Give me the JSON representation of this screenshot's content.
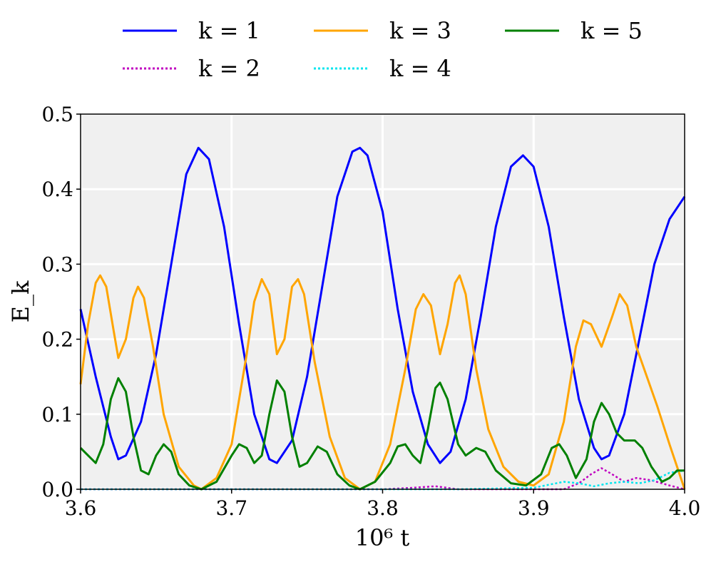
{
  "chart_data": {
    "type": "line",
    "xlabel": "10⁶ t",
    "ylabel": "E_k",
    "xlim": [
      3.6,
      4.0
    ],
    "ylim": [
      0.0,
      0.5
    ],
    "xticks": [
      "3.6",
      "3.7",
      "3.8",
      "3.9",
      "4.0"
    ],
    "yticks": [
      "0.0",
      "0.1",
      "0.2",
      "0.3",
      "0.4",
      "0.5"
    ],
    "grid": true,
    "legend_position": "top",
    "series": [
      {
        "name": "k = 1",
        "color": "#0000ff",
        "style": "solid",
        "points": [
          [
            3.6,
            0.24
          ],
          [
            3.61,
            0.15
          ],
          [
            3.62,
            0.07
          ],
          [
            3.625,
            0.04
          ],
          [
            3.63,
            0.045
          ],
          [
            3.64,
            0.09
          ],
          [
            3.65,
            0.18
          ],
          [
            3.66,
            0.3
          ],
          [
            3.67,
            0.42
          ],
          [
            3.678,
            0.455
          ],
          [
            3.685,
            0.44
          ],
          [
            3.695,
            0.35
          ],
          [
            3.705,
            0.22
          ],
          [
            3.715,
            0.1
          ],
          [
            3.725,
            0.04
          ],
          [
            3.73,
            0.035
          ],
          [
            3.74,
            0.065
          ],
          [
            3.75,
            0.15
          ],
          [
            3.76,
            0.27
          ],
          [
            3.77,
            0.39
          ],
          [
            3.78,
            0.45
          ],
          [
            3.785,
            0.455
          ],
          [
            3.79,
            0.445
          ],
          [
            3.8,
            0.37
          ],
          [
            3.81,
            0.24
          ],
          [
            3.82,
            0.13
          ],
          [
            3.83,
            0.06
          ],
          [
            3.838,
            0.035
          ],
          [
            3.845,
            0.05
          ],
          [
            3.855,
            0.12
          ],
          [
            3.865,
            0.23
          ],
          [
            3.875,
            0.35
          ],
          [
            3.885,
            0.43
          ],
          [
            3.893,
            0.445
          ],
          [
            3.9,
            0.43
          ],
          [
            3.91,
            0.35
          ],
          [
            3.92,
            0.23
          ],
          [
            3.93,
            0.12
          ],
          [
            3.94,
            0.055
          ],
          [
            3.945,
            0.04
          ],
          [
            3.95,
            0.045
          ],
          [
            3.96,
            0.1
          ],
          [
            3.97,
            0.2
          ],
          [
            3.98,
            0.3
          ],
          [
            3.99,
            0.36
          ],
          [
            4.0,
            0.39
          ]
        ]
      },
      {
        "name": "k = 2",
        "color": "#c000c0",
        "style": "dotted",
        "points": [
          [
            3.6,
            0.0
          ],
          [
            3.8,
            0.0
          ],
          [
            3.82,
            0.002
          ],
          [
            3.835,
            0.004
          ],
          [
            3.85,
            0.0
          ],
          [
            3.92,
            0.0
          ],
          [
            3.93,
            0.008
          ],
          [
            3.938,
            0.02
          ],
          [
            3.945,
            0.028
          ],
          [
            3.952,
            0.02
          ],
          [
            3.96,
            0.01
          ],
          [
            3.968,
            0.015
          ],
          [
            3.978,
            0.012
          ],
          [
            3.99,
            0.005
          ],
          [
            4.0,
            0.0
          ]
        ]
      },
      {
        "name": "k = 3",
        "color": "#ffa500",
        "style": "solid",
        "points": [
          [
            3.6,
            0.14
          ],
          [
            3.605,
            0.22
          ],
          [
            3.61,
            0.275
          ],
          [
            3.613,
            0.285
          ],
          [
            3.617,
            0.27
          ],
          [
            3.622,
            0.21
          ],
          [
            3.625,
            0.175
          ],
          [
            3.63,
            0.2
          ],
          [
            3.635,
            0.255
          ],
          [
            3.638,
            0.27
          ],
          [
            3.642,
            0.255
          ],
          [
            3.648,
            0.19
          ],
          [
            3.655,
            0.1
          ],
          [
            3.665,
            0.03
          ],
          [
            3.675,
            0.005
          ],
          [
            3.68,
            0.0
          ],
          [
            3.69,
            0.015
          ],
          [
            3.7,
            0.06
          ],
          [
            3.71,
            0.18
          ],
          [
            3.715,
            0.25
          ],
          [
            3.72,
            0.28
          ],
          [
            3.725,
            0.26
          ],
          [
            3.73,
            0.18
          ],
          [
            3.735,
            0.2
          ],
          [
            3.74,
            0.27
          ],
          [
            3.744,
            0.28
          ],
          [
            3.748,
            0.26
          ],
          [
            3.755,
            0.17
          ],
          [
            3.765,
            0.07
          ],
          [
            3.775,
            0.015
          ],
          [
            3.785,
            0.0
          ],
          [
            3.795,
            0.01
          ],
          [
            3.805,
            0.06
          ],
          [
            3.815,
            0.16
          ],
          [
            3.822,
            0.24
          ],
          [
            3.827,
            0.26
          ],
          [
            3.832,
            0.245
          ],
          [
            3.838,
            0.18
          ],
          [
            3.843,
            0.22
          ],
          [
            3.848,
            0.275
          ],
          [
            3.851,
            0.285
          ],
          [
            3.855,
            0.26
          ],
          [
            3.862,
            0.16
          ],
          [
            3.87,
            0.08
          ],
          [
            3.88,
            0.03
          ],
          [
            3.89,
            0.01
          ],
          [
            3.9,
            0.005
          ],
          [
            3.91,
            0.02
          ],
          [
            3.92,
            0.09
          ],
          [
            3.928,
            0.19
          ],
          [
            3.933,
            0.225
          ],
          [
            3.938,
            0.22
          ],
          [
            3.945,
            0.19
          ],
          [
            3.952,
            0.23
          ],
          [
            3.957,
            0.26
          ],
          [
            3.962,
            0.245
          ],
          [
            3.968,
            0.19
          ],
          [
            3.975,
            0.15
          ],
          [
            3.982,
            0.11
          ],
          [
            3.99,
            0.06
          ],
          [
            3.995,
            0.03
          ],
          [
            4.0,
            0.0
          ]
        ]
      },
      {
        "name": "k = 4",
        "color": "#00e5ee",
        "style": "dotted",
        "points": [
          [
            3.6,
            0.0
          ],
          [
            3.8,
            0.0
          ],
          [
            3.85,
            0.0
          ],
          [
            3.9,
            0.002
          ],
          [
            3.91,
            0.006
          ],
          [
            3.92,
            0.01
          ],
          [
            3.93,
            0.008
          ],
          [
            3.94,
            0.004
          ],
          [
            3.95,
            0.008
          ],
          [
            3.96,
            0.01
          ],
          [
            3.97,
            0.008
          ],
          [
            3.98,
            0.012
          ],
          [
            3.99,
            0.022
          ],
          [
            4.0,
            0.025
          ]
        ]
      },
      {
        "name": "k = 5",
        "color": "#008000",
        "style": "solid",
        "points": [
          [
            3.6,
            0.055
          ],
          [
            3.605,
            0.045
          ],
          [
            3.61,
            0.035
          ],
          [
            3.615,
            0.06
          ],
          [
            3.62,
            0.12
          ],
          [
            3.625,
            0.148
          ],
          [
            3.63,
            0.13
          ],
          [
            3.635,
            0.07
          ],
          [
            3.64,
            0.025
          ],
          [
            3.645,
            0.02
          ],
          [
            3.65,
            0.045
          ],
          [
            3.655,
            0.06
          ],
          [
            3.66,
            0.05
          ],
          [
            3.665,
            0.02
          ],
          [
            3.672,
            0.005
          ],
          [
            3.68,
            0.0
          ],
          [
            3.69,
            0.01
          ],
          [
            3.7,
            0.045
          ],
          [
            3.705,
            0.06
          ],
          [
            3.71,
            0.055
          ],
          [
            3.715,
            0.035
          ],
          [
            3.72,
            0.045
          ],
          [
            3.725,
            0.1
          ],
          [
            3.73,
            0.145
          ],
          [
            3.735,
            0.13
          ],
          [
            3.74,
            0.07
          ],
          [
            3.745,
            0.03
          ],
          [
            3.75,
            0.035
          ],
          [
            3.757,
            0.057
          ],
          [
            3.763,
            0.05
          ],
          [
            3.77,
            0.02
          ],
          [
            3.778,
            0.005
          ],
          [
            3.785,
            0.0
          ],
          [
            3.795,
            0.01
          ],
          [
            3.805,
            0.035
          ],
          [
            3.81,
            0.057
          ],
          [
            3.815,
            0.06
          ],
          [
            3.82,
            0.045
          ],
          [
            3.825,
            0.035
          ],
          [
            3.83,
            0.08
          ],
          [
            3.835,
            0.135
          ],
          [
            3.838,
            0.142
          ],
          [
            3.843,
            0.12
          ],
          [
            3.85,
            0.06
          ],
          [
            3.855,
            0.045
          ],
          [
            3.862,
            0.055
          ],
          [
            3.868,
            0.05
          ],
          [
            3.875,
            0.025
          ],
          [
            3.885,
            0.008
          ],
          [
            3.895,
            0.005
          ],
          [
            3.905,
            0.02
          ],
          [
            3.912,
            0.055
          ],
          [
            3.917,
            0.06
          ],
          [
            3.922,
            0.045
          ],
          [
            3.928,
            0.015
          ],
          [
            3.935,
            0.04
          ],
          [
            3.94,
            0.09
          ],
          [
            3.945,
            0.115
          ],
          [
            3.95,
            0.1
          ],
          [
            3.955,
            0.075
          ],
          [
            3.96,
            0.065
          ],
          [
            3.967,
            0.065
          ],
          [
            3.972,
            0.055
          ],
          [
            3.978,
            0.03
          ],
          [
            3.985,
            0.01
          ],
          [
            3.99,
            0.015
          ],
          [
            3.995,
            0.025
          ],
          [
            4.0,
            0.025
          ]
        ]
      }
    ]
  }
}
